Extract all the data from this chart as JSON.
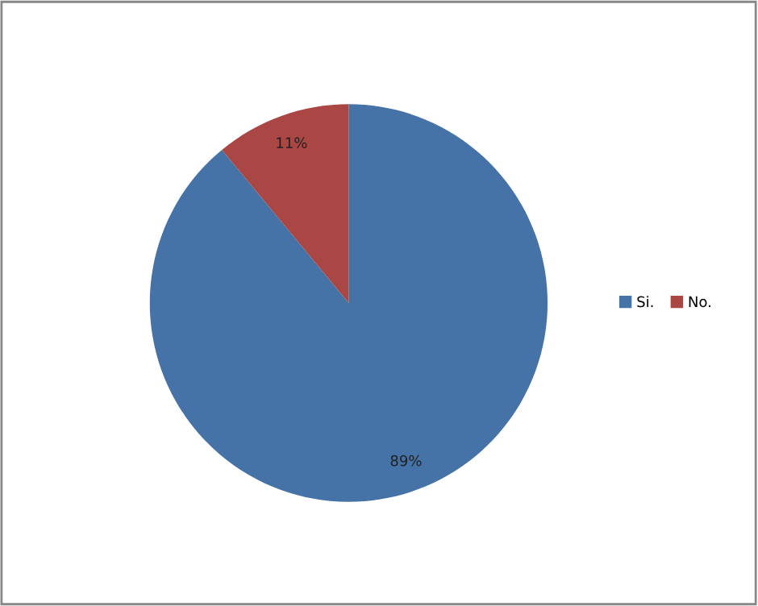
{
  "chart_data": {
    "type": "pie",
    "categories": [
      "Si.",
      "No."
    ],
    "values": [
      89,
      11
    ],
    "colors": [
      "#4572a7",
      "#aa4643"
    ],
    "value_labels": [
      "89%",
      "11%"
    ],
    "legend": "right"
  }
}
